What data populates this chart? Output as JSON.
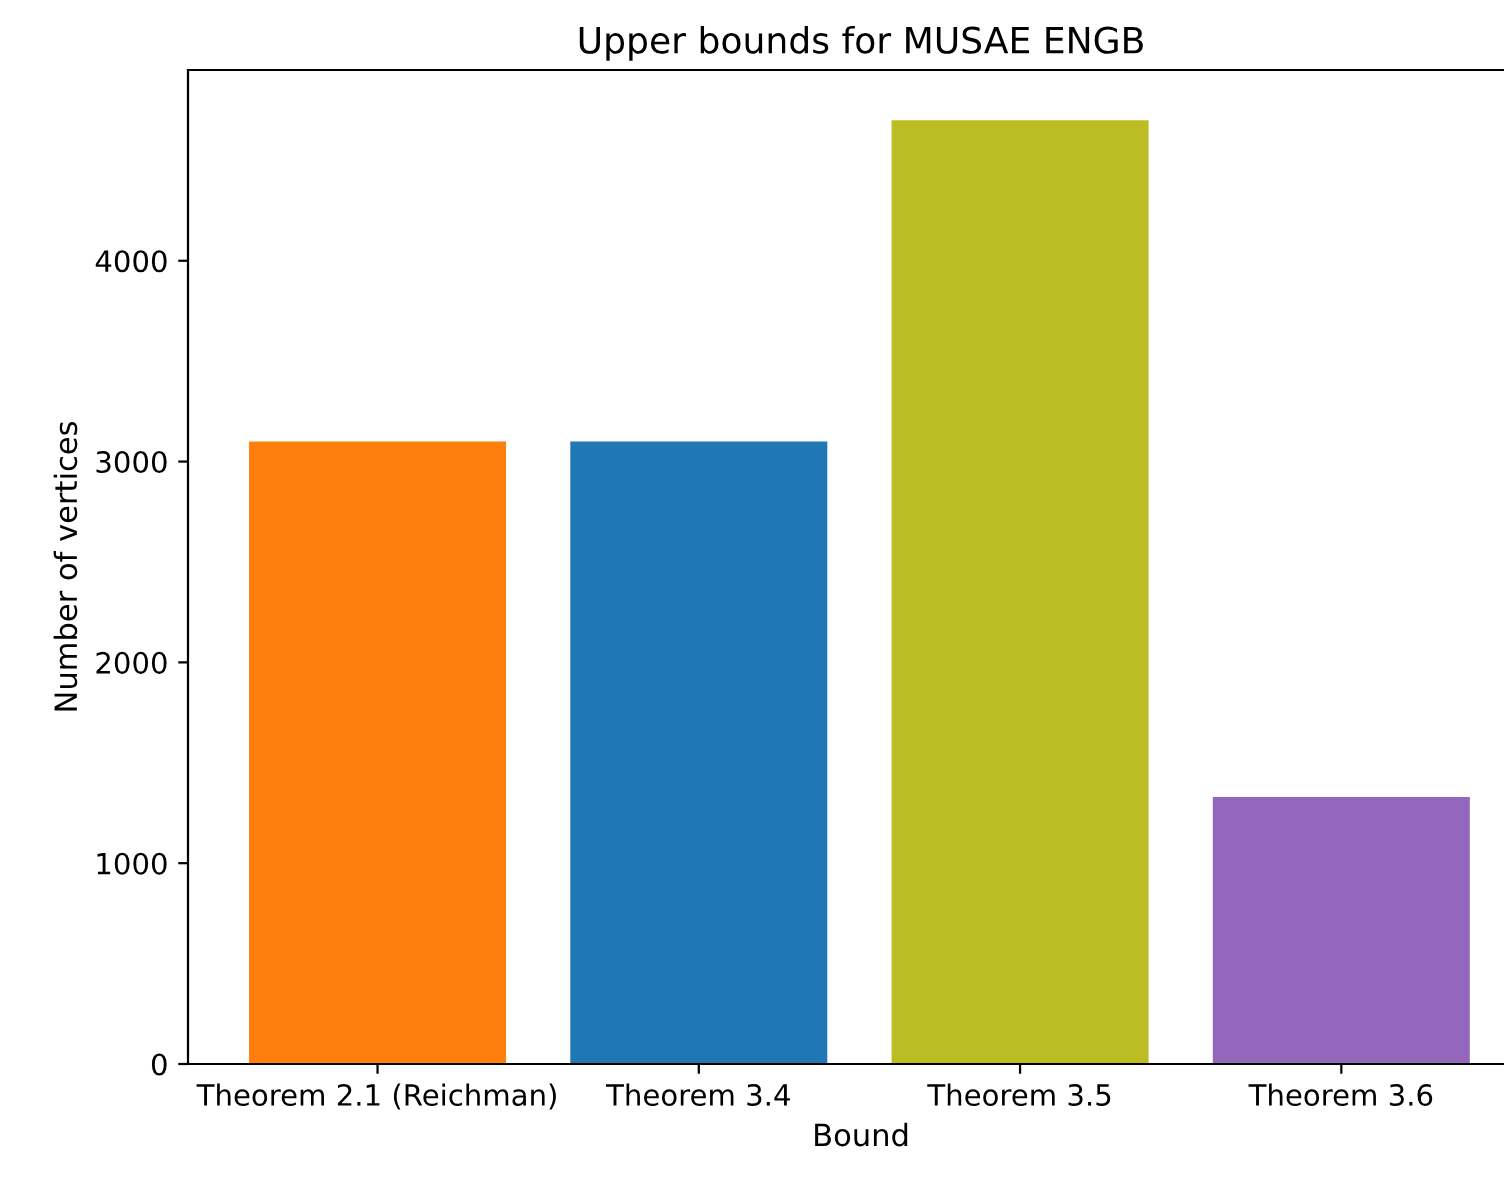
{
  "chart_data": {
    "type": "bar",
    "title": "Upper bounds for MUSAE ENGB",
    "xlabel": "Bound",
    "ylabel": "Number of vertices",
    "categories": [
      "Theorem 2.1 (Reichman)",
      "Theorem 3.4",
      "Theorem 3.5",
      "Theorem 3.6"
    ],
    "values": [
      3100,
      3100,
      4700,
      1330
    ],
    "colors": [
      "#ff7f0e",
      "#1f77b4",
      "#bcbd22",
      "#9467bd"
    ],
    "ylim": [
      0,
      4950
    ],
    "yticks": [
      0,
      1000,
      2000,
      3000,
      4000
    ],
    "grid": false
  }
}
